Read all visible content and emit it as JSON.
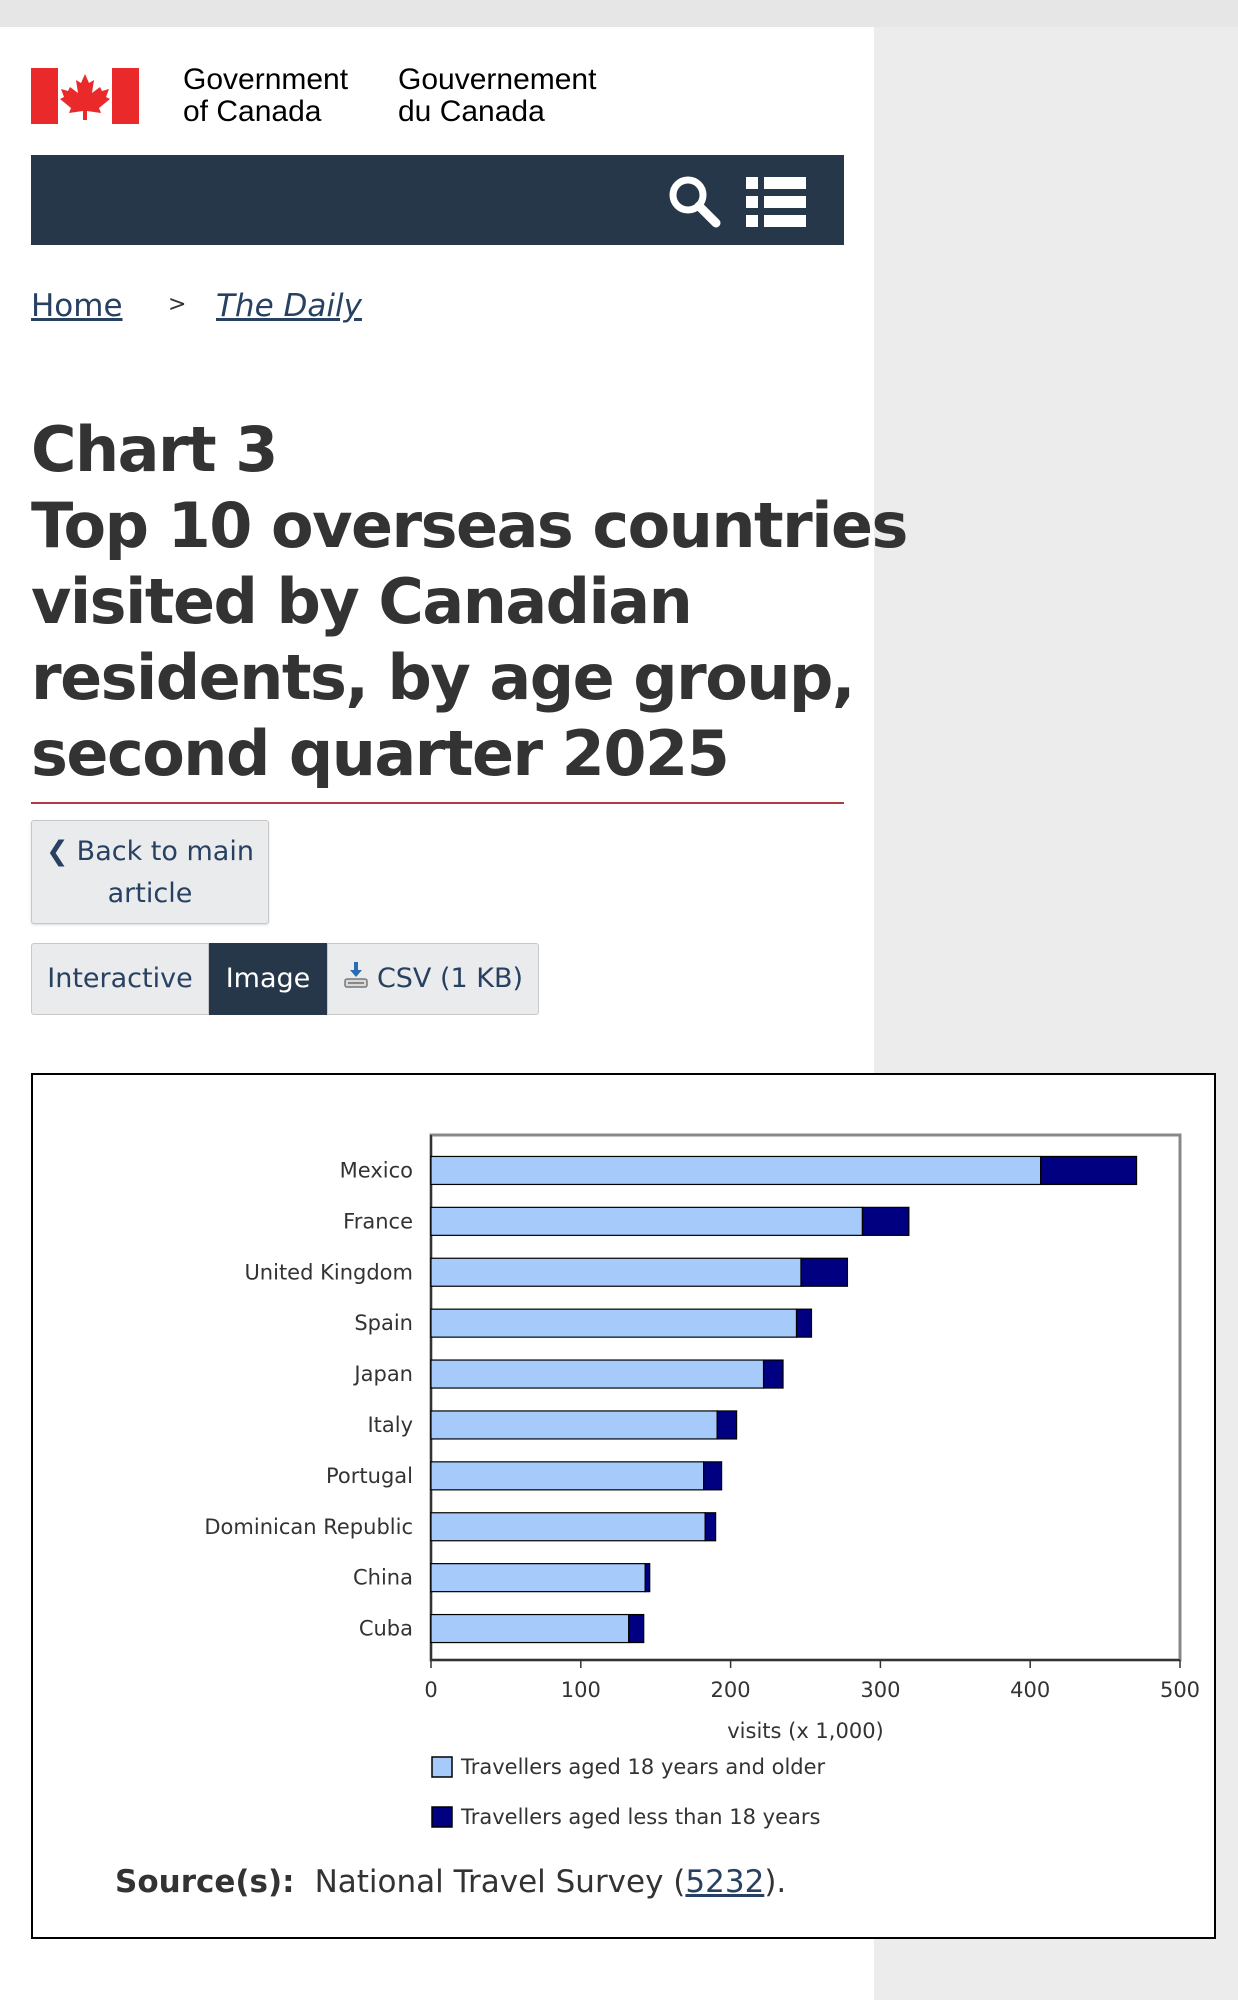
{
  "header": {
    "signature_en": [
      "Government",
      "of Canada"
    ],
    "signature_fr": [
      "Gouvernement",
      "du Canada"
    ],
    "search_icon": "search-icon",
    "menu_icon": "list-menu-icon",
    "nav_color": "#26374a"
  },
  "breadcrumb": {
    "home": "Home",
    "separator": ">",
    "daily": "The Daily"
  },
  "title": {
    "lines": [
      "Chart 3",
      "Top 10 overseas countries",
      "visited by Canadian",
      "residents, by age group,",
      "second quarter 2025"
    ]
  },
  "back_button": {
    "line1": "Back to main",
    "line2": "article"
  },
  "tabs": {
    "interactive": "Interactive",
    "image": "Image",
    "csv": "CSV (1 KB)",
    "active": "Image"
  },
  "source": {
    "label": "Source(s):",
    "text_before": "National Travel Survey (",
    "link": "5232",
    "text_after": ")."
  },
  "chart_data": {
    "type": "bar",
    "orientation": "horizontal",
    "stacked": true,
    "title": "",
    "xlabel": "visits (x 1,000)",
    "ylabel": "",
    "xlim": [
      0,
      500
    ],
    "xticks": [
      0,
      100,
      200,
      300,
      400,
      500
    ],
    "grid": false,
    "legend_position": "bottom",
    "categories": [
      "Mexico",
      "France",
      "United Kingdom",
      "Spain",
      "Japan",
      "Italy",
      "Portugal",
      "Dominican Republic",
      "China",
      "Cuba"
    ],
    "series": [
      {
        "name": "Travellers aged 18 years and older",
        "color": "#a6cbfa",
        "values": [
          407,
          288,
          247,
          244,
          222,
          191,
          182,
          183,
          143,
          132
        ]
      },
      {
        "name": "Travellers aged less than 18 years",
        "color": "#000080",
        "values": [
          64,
          31,
          31,
          10,
          13,
          13,
          12,
          7,
          3,
          10
        ]
      }
    ]
  }
}
